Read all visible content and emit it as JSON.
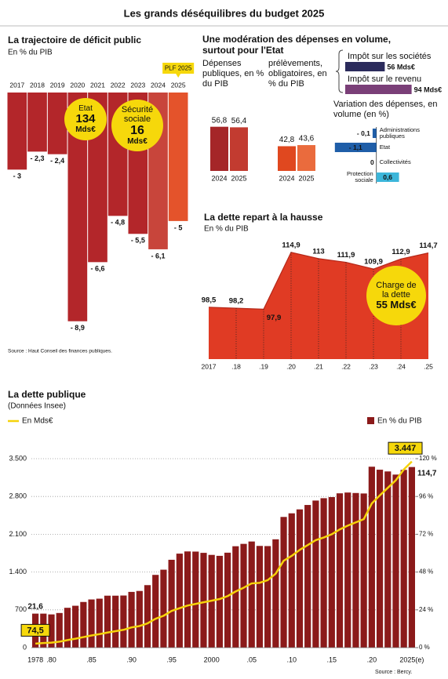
{
  "title": "Les grands déséquilibres du budget 2025",
  "chart_data": [
    {
      "type": "bar",
      "title": "La trajectoire de déficit public",
      "subtitle": "En % du PIB",
      "categories": [
        "2017",
        "2018",
        "2019",
        "2020",
        "2021",
        "2022",
        "2023",
        "2024",
        "2025"
      ],
      "values": [
        -3,
        -2.3,
        -2.4,
        -8.9,
        -6.6,
        -4.8,
        -5.5,
        -6.1,
        -5
      ],
      "value_labels": [
        "- 3",
        "- 2,3",
        "- 2,4",
        "- 8,9",
        "- 6,6",
        "- 4,8",
        "- 5,5",
        "- 6,1",
        "- 5"
      ],
      "colors": [
        "#b3262a",
        "#b3262a",
        "#b3262a",
        "#b3262a",
        "#b3262a",
        "#b3262a",
        "#b3262a",
        "#c8453b",
        "#e4532b"
      ],
      "ylim": [
        -9,
        0
      ],
      "callout": "PLF 2025",
      "annotations": [
        {
          "label": "Etat",
          "amount": "134",
          "unit": "Mds€"
        },
        {
          "label": "Sécurité sociale",
          "amount": "16",
          "unit": "Mds€"
        }
      ],
      "source": "Source : Haut Conseil des finances publiques."
    },
    {
      "type": "grouped-bar",
      "title": "Une modération des dépenses en volume, surtout pour l'Etat",
      "groups": [
        {
          "label": "Dépenses publiques, en % du PIB",
          "categories": [
            "2024",
            "2025"
          ],
          "values": [
            56.8,
            56.4
          ],
          "value_labels": [
            "56,8",
            "56,4"
          ],
          "colors": [
            "#a52628",
            "#c23b30"
          ]
        },
        {
          "label": "prélèvements, obligatoires, en % du PIB",
          "categories": [
            "2024",
            "2025"
          ],
          "values": [
            42.8,
            43.6
          ],
          "value_labels": [
            "42,8",
            "43,6"
          ],
          "colors": [
            "#e0481f",
            "#ea6b3d"
          ]
        }
      ],
      "ylim": [
        25,
        60
      ]
    },
    {
      "type": "hbar",
      "categories": [
        "Impôt sur les sociétés",
        "Impôt sur le revenu"
      ],
      "values": [
        56,
        94
      ],
      "value_labels": [
        "56 Mds€",
        "94 Mds€"
      ],
      "colors": [
        "#2b2b5c",
        "#7a3f78"
      ],
      "xlim": [
        0,
        100
      ]
    },
    {
      "type": "diverging-bar",
      "title": "Variation des dépenses, en volume (en %)",
      "categories": [
        "Administrations publiques",
        "Etat",
        "Collectivités",
        "Protection sociale"
      ],
      "values": [
        -0.1,
        -1.1,
        0,
        0.6
      ],
      "value_labels": [
        "- 0,1",
        "- 1,1",
        "0",
        "0,6"
      ],
      "colors": [
        "#1f5ea8",
        "#1f5ea8",
        "#1f5ea8",
        "#3cb6da"
      ],
      "xlim": [
        -1.2,
        0.9
      ]
    },
    {
      "type": "area",
      "title": "La dette repart à la hausse",
      "subtitle": "En % du PIB",
      "categories": [
        "2017",
        ".18",
        ".19",
        ".20",
        ".21",
        ".22",
        ".23",
        ".24",
        ".25"
      ],
      "values": [
        98.5,
        98.2,
        97.9,
        114.9,
        113,
        111.9,
        109.9,
        112.9,
        114.7
      ],
      "value_labels": [
        "98,5",
        "98,2",
        "97,9",
        "114,9",
        "113",
        "111,9",
        "109,9",
        "112,9",
        "114,7"
      ],
      "color": "#e03b24",
      "ylim": [
        83,
        120
      ],
      "annotation": {
        "label": "Charge de la dette",
        "amount": "55 Mds€"
      }
    },
    {
      "type": "combo",
      "title": "La dette publique",
      "subtitle": "(Données Insee)",
      "categories": [
        "1978",
        null,
        ".80",
        null,
        null,
        null,
        null,
        ".85",
        null,
        null,
        null,
        null,
        ".90",
        null,
        null,
        null,
        null,
        ".95",
        null,
        null,
        null,
        null,
        "2000",
        null,
        null,
        null,
        null,
        ".05",
        null,
        null,
        null,
        null,
        ".10",
        null,
        null,
        null,
        null,
        ".15",
        null,
        null,
        null,
        null,
        ".20",
        null,
        null,
        null,
        null,
        "2025(e)"
      ],
      "series": [
        {
          "name": "En % du PIB",
          "mark": "bar",
          "axis": "y2",
          "color": "#8b1a1a",
          "values": [
            21.6,
            21.6,
            21.1,
            22,
            25.3,
            26.6,
            29,
            30.6,
            31.1,
            33,
            33,
            33.1,
            35.4,
            36,
            39.7,
            46.2,
            49.5,
            55.8,
            59.7,
            61.1,
            61,
            60.2,
            58.9,
            58.3,
            60.3,
            64.4,
            65.9,
            67.4,
            64.6,
            64.5,
            68.8,
            83,
            85.3,
            87.8,
            90.6,
            93.4,
            94.9,
            95.6,
            98,
            98.5,
            98.2,
            97.9,
            114.9,
            113,
            111.9,
            109.9,
            112.9,
            114.7
          ],
          "value_labels": [
            "21,6",
            null,
            null,
            null,
            null,
            null,
            null,
            null,
            null,
            null,
            null,
            null,
            null,
            null,
            null,
            null,
            null,
            null,
            null,
            null,
            null,
            null,
            null,
            null,
            null,
            null,
            null,
            null,
            null,
            null,
            null,
            null,
            null,
            null,
            null,
            null,
            null,
            null,
            null,
            null,
            null,
            null,
            null,
            null,
            null,
            null,
            null,
            "114,7"
          ]
        },
        {
          "name": "En Mds€",
          "mark": "line",
          "color": "#f5d20a",
          "values": [
            74.5,
            85,
            92,
            110,
            140,
            165,
            195,
            225,
            250,
            280,
            305,
            330,
            375,
            400,
            450,
            535,
            590,
            680,
            730,
            780,
            810,
            840,
            870,
            900,
            955,
            1040,
            1110,
            1190,
            1200,
            1250,
            1370,
            1610,
            1700,
            1810,
            1900,
            1990,
            2040,
            2100,
            2190,
            2260,
            2320,
            2380,
            2670,
            2820,
            2960,
            3100,
            3300,
            3447
          ],
          "value_labels": [
            "74,5",
            null,
            null,
            null,
            null,
            null,
            null,
            null,
            null,
            null,
            null,
            null,
            null,
            null,
            null,
            null,
            null,
            null,
            null,
            null,
            null,
            null,
            null,
            null,
            null,
            null,
            null,
            null,
            null,
            null,
            null,
            null,
            null,
            null,
            null,
            null,
            null,
            null,
            null,
            null,
            null,
            null,
            null,
            null,
            null,
            null,
            null,
            "3.447"
          ]
        }
      ],
      "ylim": [
        0,
        3500
      ],
      "yticks": [
        0,
        700,
        {
          "value": 1400,
          "label": "1.400"
        },
        {
          "value": 2100,
          "label": "2.100"
        },
        {
          "value": 2800,
          "label": "2.800"
        },
        {
          "value": 3500,
          "label": "3.500"
        }
      ],
      "y2lim": [
        0,
        120
      ],
      "y2ticks": [
        {
          "value": 0,
          "label": "0 %"
        },
        {
          "value": 24,
          "label": "24 %"
        },
        {
          "value": 48,
          "label": "48 %"
        },
        {
          "value": 72,
          "label": "72 %"
        },
        {
          "value": 96,
          "label": "96 %"
        },
        {
          "value": 120,
          "label": "120 %"
        }
      ],
      "grid": true,
      "source": "Source : Bercy."
    }
  ]
}
